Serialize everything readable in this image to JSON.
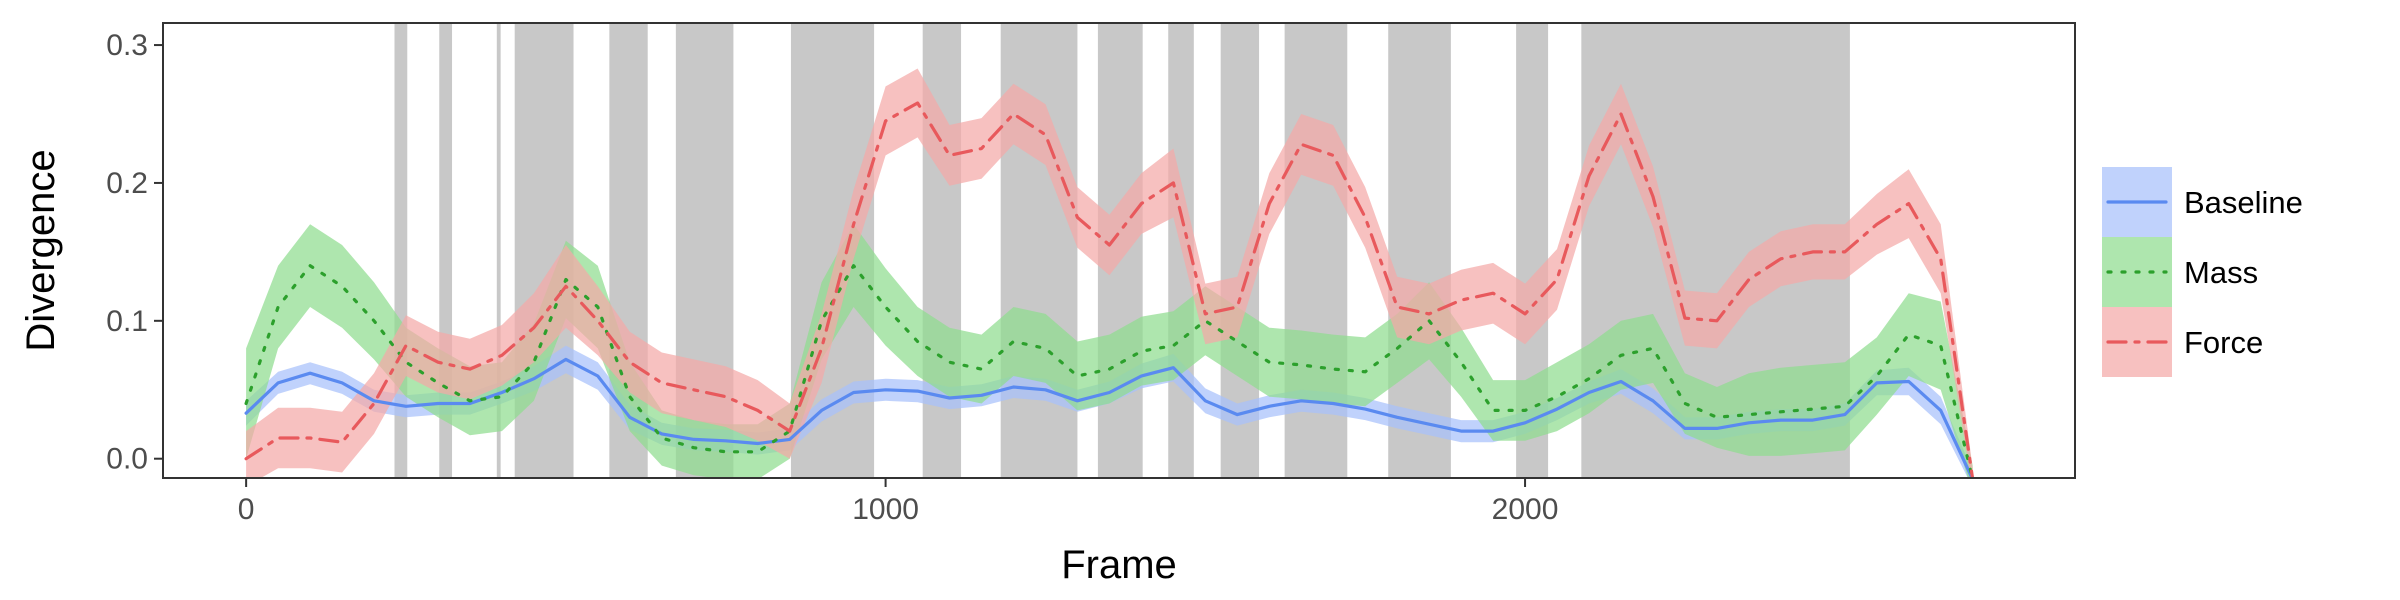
{
  "chart_data": {
    "type": "line",
    "xlabel": "Frame",
    "ylabel": "Divergence",
    "xlim": [
      -130,
      2860
    ],
    "ylim": [
      -0.014,
      0.316
    ],
    "xticks": [
      0,
      1000,
      2000
    ],
    "yticks": [
      0.0,
      0.1,
      0.2,
      0.3
    ],
    "xtick_labels": [
      "0",
      "1000",
      "2000"
    ],
    "ytick_labels": [
      "0.0",
      "0.1",
      "0.2",
      "0.3"
    ],
    "legend_position": "right",
    "grid": false,
    "shaded_intervals": [
      [
        232,
        252
      ],
      [
        302,
        322
      ],
      [
        392,
        398
      ],
      [
        420,
        512
      ],
      [
        568,
        628
      ],
      [
        672,
        762
      ],
      [
        852,
        982
      ],
      [
        1058,
        1118
      ],
      [
        1180,
        1300
      ],
      [
        1332,
        1402
      ],
      [
        1442,
        1482
      ],
      [
        1524,
        1584
      ],
      [
        1624,
        1722
      ],
      [
        1786,
        1884
      ],
      [
        1986,
        2036
      ],
      [
        2088,
        2508
      ]
    ],
    "x": [
      0,
      50,
      100,
      150,
      200,
      250,
      300,
      350,
      400,
      450,
      500,
      550,
      600,
      650,
      700,
      750,
      800,
      850,
      900,
      950,
      1000,
      1050,
      1100,
      1150,
      1200,
      1250,
      1300,
      1350,
      1400,
      1450,
      1500,
      1550,
      1600,
      1650,
      1700,
      1750,
      1800,
      1850,
      1900,
      1950,
      2000,
      2050,
      2100,
      2150,
      2200,
      2250,
      2300,
      2350,
      2400,
      2450,
      2500,
      2550,
      2600,
      2650,
      2700
    ],
    "series": [
      {
        "name": "Baseline",
        "line_color": "#5a8af0",
        "fill_color": "#a7c1fb",
        "linestyle": "solid",
        "values": [
          0.033,
          0.055,
          0.062,
          0.055,
          0.042,
          0.038,
          0.04,
          0.04,
          0.048,
          0.058,
          0.072,
          0.06,
          0.03,
          0.018,
          0.014,
          0.013,
          0.011,
          0.014,
          0.035,
          0.048,
          0.05,
          0.049,
          0.044,
          0.046,
          0.052,
          0.05,
          0.042,
          0.048,
          0.06,
          0.066,
          0.042,
          0.032,
          0.038,
          0.042,
          0.04,
          0.036,
          0.03,
          0.025,
          0.02,
          0.02,
          0.026,
          0.036,
          0.048,
          0.056,
          0.042,
          0.022,
          0.022,
          0.026,
          0.028,
          0.028,
          0.032,
          0.055,
          0.056,
          0.035,
          -0.015
        ],
        "band": [
          0.009,
          0.008,
          0.008,
          0.008,
          0.008,
          0.008,
          0.008,
          0.008,
          0.008,
          0.009,
          0.01,
          0.01,
          0.009,
          0.008,
          0.008,
          0.008,
          0.008,
          0.008,
          0.008,
          0.008,
          0.008,
          0.008,
          0.008,
          0.008,
          0.008,
          0.008,
          0.008,
          0.008,
          0.009,
          0.01,
          0.009,
          0.008,
          0.008,
          0.008,
          0.008,
          0.008,
          0.008,
          0.008,
          0.008,
          0.008,
          0.008,
          0.008,
          0.008,
          0.009,
          0.009,
          0.008,
          0.008,
          0.008,
          0.008,
          0.008,
          0.008,
          0.009,
          0.01,
          0.01,
          0.006
        ]
      },
      {
        "name": "Mass",
        "line_color": "#2ca02c",
        "fill_color": "#8fdc8f",
        "linestyle": "dotted",
        "values": [
          0.04,
          0.11,
          0.14,
          0.125,
          0.1,
          0.07,
          0.055,
          0.042,
          0.045,
          0.07,
          0.13,
          0.11,
          0.045,
          0.015,
          0.008,
          0.005,
          0.005,
          0.02,
          0.1,
          0.14,
          0.11,
          0.085,
          0.07,
          0.065,
          0.085,
          0.08,
          0.06,
          0.065,
          0.078,
          0.082,
          0.1,
          0.085,
          0.07,
          0.068,
          0.065,
          0.063,
          0.08,
          0.1,
          0.07,
          0.035,
          0.035,
          0.045,
          0.058,
          0.075,
          0.08,
          0.04,
          0.03,
          0.032,
          0.034,
          0.036,
          0.038,
          0.06,
          0.09,
          0.082,
          -0.015
        ],
        "band": [
          0.04,
          0.03,
          0.03,
          0.03,
          0.028,
          0.025,
          0.025,
          0.025,
          0.025,
          0.028,
          0.028,
          0.03,
          0.025,
          0.02,
          0.02,
          0.02,
          0.02,
          0.02,
          0.028,
          0.03,
          0.028,
          0.025,
          0.025,
          0.025,
          0.025,
          0.025,
          0.025,
          0.025,
          0.025,
          0.025,
          0.025,
          0.025,
          0.025,
          0.025,
          0.025,
          0.025,
          0.025,
          0.028,
          0.025,
          0.022,
          0.022,
          0.025,
          0.025,
          0.025,
          0.025,
          0.022,
          0.022,
          0.03,
          0.032,
          0.032,
          0.032,
          0.028,
          0.03,
          0.032,
          0.01
        ]
      },
      {
        "name": "Force",
        "line_color": "#e8595c",
        "fill_color": "#f4a9a8",
        "linestyle": "dashdot",
        "values": [
          0.0,
          0.015,
          0.015,
          0.012,
          0.04,
          0.082,
          0.07,
          0.065,
          0.075,
          0.095,
          0.125,
          0.1,
          0.07,
          0.055,
          0.05,
          0.045,
          0.035,
          0.02,
          0.08,
          0.17,
          0.245,
          0.258,
          0.22,
          0.225,
          0.25,
          0.235,
          0.175,
          0.155,
          0.185,
          0.2,
          0.105,
          0.11,
          0.185,
          0.228,
          0.22,
          0.175,
          0.11,
          0.105,
          0.115,
          0.12,
          0.105,
          0.13,
          0.205,
          0.25,
          0.19,
          0.102,
          0.1,
          0.13,
          0.145,
          0.15,
          0.15,
          0.17,
          0.185,
          0.145,
          -0.015
        ],
        "band": [
          0.02,
          0.022,
          0.022,
          0.022,
          0.022,
          0.022,
          0.022,
          0.022,
          0.022,
          0.025,
          0.03,
          0.025,
          0.022,
          0.022,
          0.022,
          0.022,
          0.022,
          0.02,
          0.025,
          0.025,
          0.025,
          0.025,
          0.022,
          0.022,
          0.022,
          0.022,
          0.022,
          0.022,
          0.022,
          0.025,
          0.022,
          0.022,
          0.022,
          0.022,
          0.022,
          0.022,
          0.022,
          0.022,
          0.022,
          0.022,
          0.022,
          0.022,
          0.022,
          0.022,
          0.022,
          0.02,
          0.02,
          0.02,
          0.02,
          0.02,
          0.02,
          0.022,
          0.025,
          0.025,
          0.008
        ]
      }
    ]
  },
  "colors": {
    "shade": "#c8c8c8",
    "axis": "#333333",
    "tick_text": "#4d4d4d"
  }
}
